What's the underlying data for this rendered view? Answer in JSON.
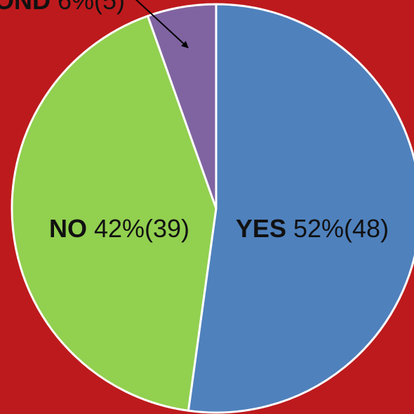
{
  "chart_data": {
    "type": "pie",
    "background": "#bd1a1d",
    "slices": [
      {
        "name": "YES",
        "percent_label": "52%(48)",
        "value": 48,
        "color": "#4f81bd"
      },
      {
        "name": "NO",
        "percent_label": "42%(39)",
        "value": 39,
        "color": "#92d050"
      },
      {
        "name": "OND",
        "percent_label": "6%(5)",
        "value": 5,
        "color": "#8064a2"
      }
    ]
  }
}
